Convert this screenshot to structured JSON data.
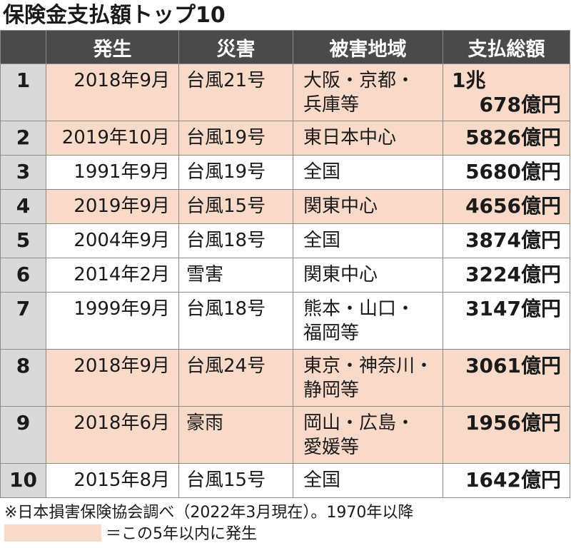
{
  "title": "保険金支払額トップ10",
  "headers": [
    "",
    "発生",
    "災害",
    "被害地域",
    "支払総額"
  ],
  "rows": [
    {
      "rank": "1",
      "date": "2018年9月",
      "disaster": "台風21号",
      "area_1": "大阪・京都・",
      "area_2": "兵庫等",
      "amount_1": "1兆",
      "amount_2": "678億円",
      "recent": true
    },
    {
      "rank": "2",
      "date": "2019年10月",
      "disaster": "台風19号",
      "area_1": "東日本中心",
      "area_2": "",
      "amount_1": "",
      "amount_2": "5826億円",
      "recent": true
    },
    {
      "rank": "3",
      "date": "1991年9月",
      "disaster": "台風19号",
      "area_1": "全国",
      "area_2": "",
      "amount_1": "",
      "amount_2": "5680億円",
      "recent": false
    },
    {
      "rank": "4",
      "date": "2019年9月",
      "disaster": "台風15号",
      "area_1": "関東中心",
      "area_2": "",
      "amount_1": "",
      "amount_2": "4656億円",
      "recent": true
    },
    {
      "rank": "5",
      "date": "2004年9月",
      "disaster": "台風18号",
      "area_1": "全国",
      "area_2": "",
      "amount_1": "",
      "amount_2": "3874億円",
      "recent": false
    },
    {
      "rank": "6",
      "date": "2014年2月",
      "disaster": "雪害",
      "area_1": "関東中心",
      "area_2": "",
      "amount_1": "",
      "amount_2": "3224億円",
      "recent": false
    },
    {
      "rank": "7",
      "date": "1999年9月",
      "disaster": "台風18号",
      "area_1": "熊本・山口・",
      "area_2": "福岡等",
      "amount_1": "",
      "amount_2": "3147億円",
      "recent": false
    },
    {
      "rank": "8",
      "date": "2018年9月",
      "disaster": "台風24号",
      "area_1": "東京・神奈川・",
      "area_2": "静岡等",
      "amount_1": "",
      "amount_2": "3061億円",
      "recent": true
    },
    {
      "rank": "9",
      "date": "2018年6月",
      "disaster": "豪雨",
      "area_1": "岡山・広島・",
      "area_2": "愛媛等",
      "amount_1": "",
      "amount_2": "1956億円",
      "recent": true
    },
    {
      "rank": "10",
      "date": "2015年8月",
      "disaster": "台風15号",
      "area_1": "全国",
      "area_2": "",
      "amount_1": "",
      "amount_2": "1642億円",
      "recent": false
    }
  ],
  "footnote": "※日本損害保険協会調べ（2022年3月現在）。1970年以降",
  "legend": "＝この5年以内に発生",
  "colors": {
    "highlight": "#f9d9c8",
    "header_bg": "#4a4a4a",
    "rank_bg": "#d9d9d9"
  }
}
